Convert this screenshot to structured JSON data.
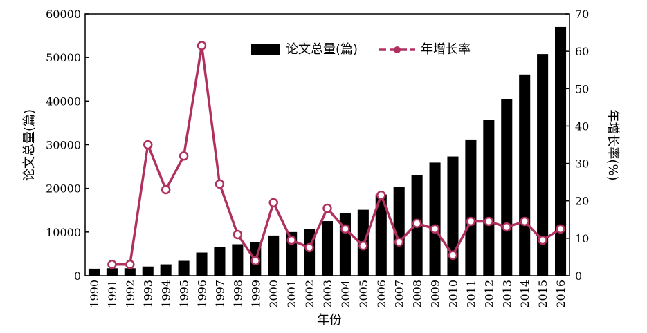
{
  "chart_data": {
    "type": "bar+line",
    "categories": [
      "1990",
      "1991",
      "1992",
      "1993",
      "1994",
      "1995",
      "1996",
      "1997",
      "1998",
      "1999",
      "2000",
      "2001",
      "2002",
      "2003",
      "2004",
      "2005",
      "2006",
      "2007",
      "2008",
      "2009",
      "2010",
      "2011",
      "2012",
      "2013",
      "2014",
      "2015",
      "2016"
    ],
    "series": [
      {
        "name": "论文总量(篇)",
        "type": "bar",
        "axis": "left",
        "color": "#000000",
        "values": [
          1600,
          1700,
          1700,
          2100,
          2600,
          3400,
          5300,
          6500,
          7200,
          7700,
          9200,
          10000,
          10700,
          12500,
          14400,
          15100,
          18600,
          20300,
          23100,
          25900,
          27300,
          31200,
          35700,
          40400,
          46100,
          50800,
          57000
        ]
      },
      {
        "name": "年增长率",
        "type": "line",
        "axis": "right",
        "color": "#b03060",
        "values": [
          null,
          3,
          3,
          35,
          23,
          32,
          61.5,
          24.5,
          11,
          4,
          19.5,
          9.5,
          7.5,
          18,
          12.5,
          8,
          21.5,
          9,
          14,
          12.5,
          5.5,
          14.5,
          14.5,
          13,
          14.5,
          9.5,
          12.5
        ]
      }
    ],
    "xlabel": "年份",
    "ylabel_left": "论文总量(篇)",
    "ylabel_right": "年增长率(%)",
    "ylim_left": [
      0,
      60000
    ],
    "ylim_right": [
      0,
      70
    ],
    "yticks_left": [
      0,
      10000,
      20000,
      30000,
      40000,
      50000,
      60000
    ],
    "yticks_right": [
      0,
      10,
      20,
      30,
      40,
      50,
      60,
      70
    ],
    "grid": false,
    "legend_position": "top-center"
  }
}
